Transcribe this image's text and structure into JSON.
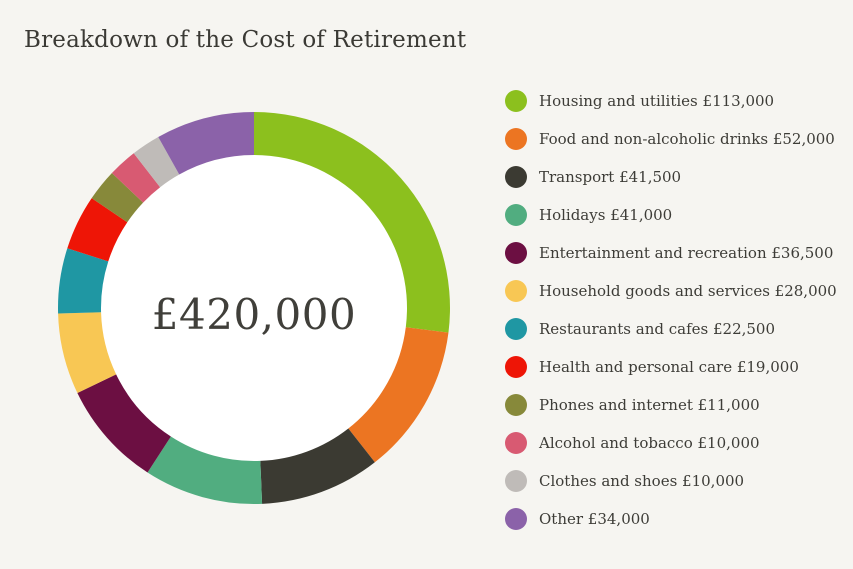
{
  "page": {
    "background_color": "#f6f5f1",
    "text_color": "#3d3c37"
  },
  "chart_data": {
    "type": "pie",
    "subtype": "donut",
    "title": "Breakdown of the Cost of Retirement",
    "center_label": "£420,000",
    "start_angle_deg": 0,
    "direction": "clockwise",
    "legend_position": "right",
    "hole_color": "#ffffff",
    "segments": [
      {
        "label": "Housing and utilities",
        "value": 113000,
        "legend_text": "Housing and utilities £113,000",
        "color": "#8cc01e"
      },
      {
        "label": "Food and non-alcoholic drinks",
        "value": 52000,
        "legend_text": "Food and non-alcoholic drinks £52,000",
        "color": "#ec7522"
      },
      {
        "label": "Transport",
        "value": 41500,
        "legend_text": "Transport £41,500",
        "color": "#3b3a32"
      },
      {
        "label": "Holidays",
        "value": 41000,
        "legend_text": "Holidays £41,000",
        "color": "#51ad80"
      },
      {
        "label": "Entertainment and recreation",
        "value": 36500,
        "legend_text": "Entertainment and recreation £36,500",
        "color": "#6c0f42"
      },
      {
        "label": "Household goods and services",
        "value": 28000,
        "legend_text": "Household goods and services £28,000",
        "color": "#f8c754"
      },
      {
        "label": "Restaurants and cafes",
        "value": 22500,
        "legend_text": "Restaurants and cafes £22,500",
        "color": "#1f97a3"
      },
      {
        "label": "Health and personal care",
        "value": 19000,
        "legend_text": "Health and personal care £19,000",
        "color": "#ee1506"
      },
      {
        "label": "Phones and internet",
        "value": 11000,
        "legend_text": "Phones and internet £11,000",
        "color": "#87893a"
      },
      {
        "label": "Alcohol and tobacco",
        "value": 10000,
        "legend_text": "Alcohol and tobacco £10,000",
        "color": "#d85a72"
      },
      {
        "label": "Clothes and shoes",
        "value": 10000,
        "legend_text": "Clothes and shoes £10,000",
        "color": "#bfbbb8"
      },
      {
        "label": "Other",
        "value": 34000,
        "legend_text": "Other £34,000",
        "color": "#8b62a9"
      }
    ]
  }
}
